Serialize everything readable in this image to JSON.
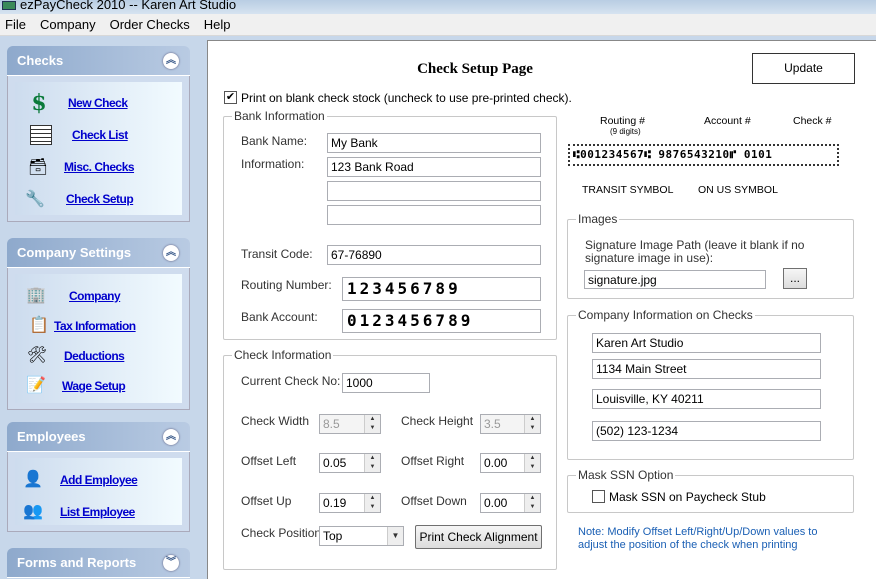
{
  "window": {
    "title": "ezPayCheck 2010 -- Karen Art Studio"
  },
  "menu": [
    "File",
    "Company",
    "Order Checks",
    "Help"
  ],
  "sidebar": {
    "checks": {
      "title": "Checks",
      "items": [
        "New Check",
        "Check List",
        "Misc. Checks",
        "Check Setup"
      ]
    },
    "company": {
      "title": "Company Settings",
      "items": [
        "Company",
        "Tax Information",
        "Deductions",
        "Wage Setup"
      ]
    },
    "employees": {
      "title": "Employees",
      "items": [
        "Add Employee",
        "List Employee"
      ]
    },
    "forms": {
      "title": "Forms and Reports"
    }
  },
  "page": {
    "title": "Check Setup Page",
    "update": "Update",
    "blank_stock": {
      "label": "Print on blank check stock (uncheck to use pre-printed check).",
      "checked": true
    }
  },
  "bank": {
    "title": "Bank Information",
    "name_label": "Bank Name:",
    "name": "My Bank",
    "info_label": "Information:",
    "info": [
      "123 Bank Road",
      "",
      ""
    ],
    "transit_label": "Transit Code:",
    "transit": "67-76890",
    "routing_label": "Routing Number:",
    "routing": "123456789",
    "account_label": "Bank Account:",
    "account": "0123456789"
  },
  "checkinfo": {
    "title": "Check Information",
    "current_label": "Current Check No:",
    "current": "1000",
    "width_label": "Check Width",
    "width": "8.5",
    "height_label": "Check Height",
    "height": "3.5",
    "left_label": "Offset Left",
    "left": "0.05",
    "right_label": "Offset Right",
    "right": "0.00",
    "up_label": "Offset Up",
    "up": "0.19",
    "down_label": "Offset Down",
    "down": "0.00",
    "position_label": "Check Position",
    "position": "Top",
    "align_button": "Print Check Alignment"
  },
  "micr": {
    "routing": "Routing #",
    "digits": "(9 digits)",
    "account": "Account #",
    "check": "Check #",
    "line": "⑆001234567⑆ 9876543210⑈ 0101",
    "transit": "TRANSIT SYMBOL",
    "onus": "ON US SYMBOL"
  },
  "images": {
    "title": "Images",
    "desc1": "Signature Image Path (leave it blank if no",
    "desc2": "signature image in use):",
    "path": "signature.jpg",
    "browse": "..."
  },
  "companyinfo": {
    "title": "Company Information on Checks",
    "lines": [
      "Karen Art Studio",
      "1134 Main Street",
      "Louisville, KY 40211",
      "(502) 123-1234"
    ]
  },
  "mask": {
    "title": "Mask SSN Option",
    "label": "Mask SSN on Paycheck Stub",
    "checked": false
  },
  "note": {
    "line1": "Note: Modify Offset Left/Right/Up/Down values to",
    "line2": "adjust the position of  the check when printing",
    "color": "#1a5fb4"
  }
}
